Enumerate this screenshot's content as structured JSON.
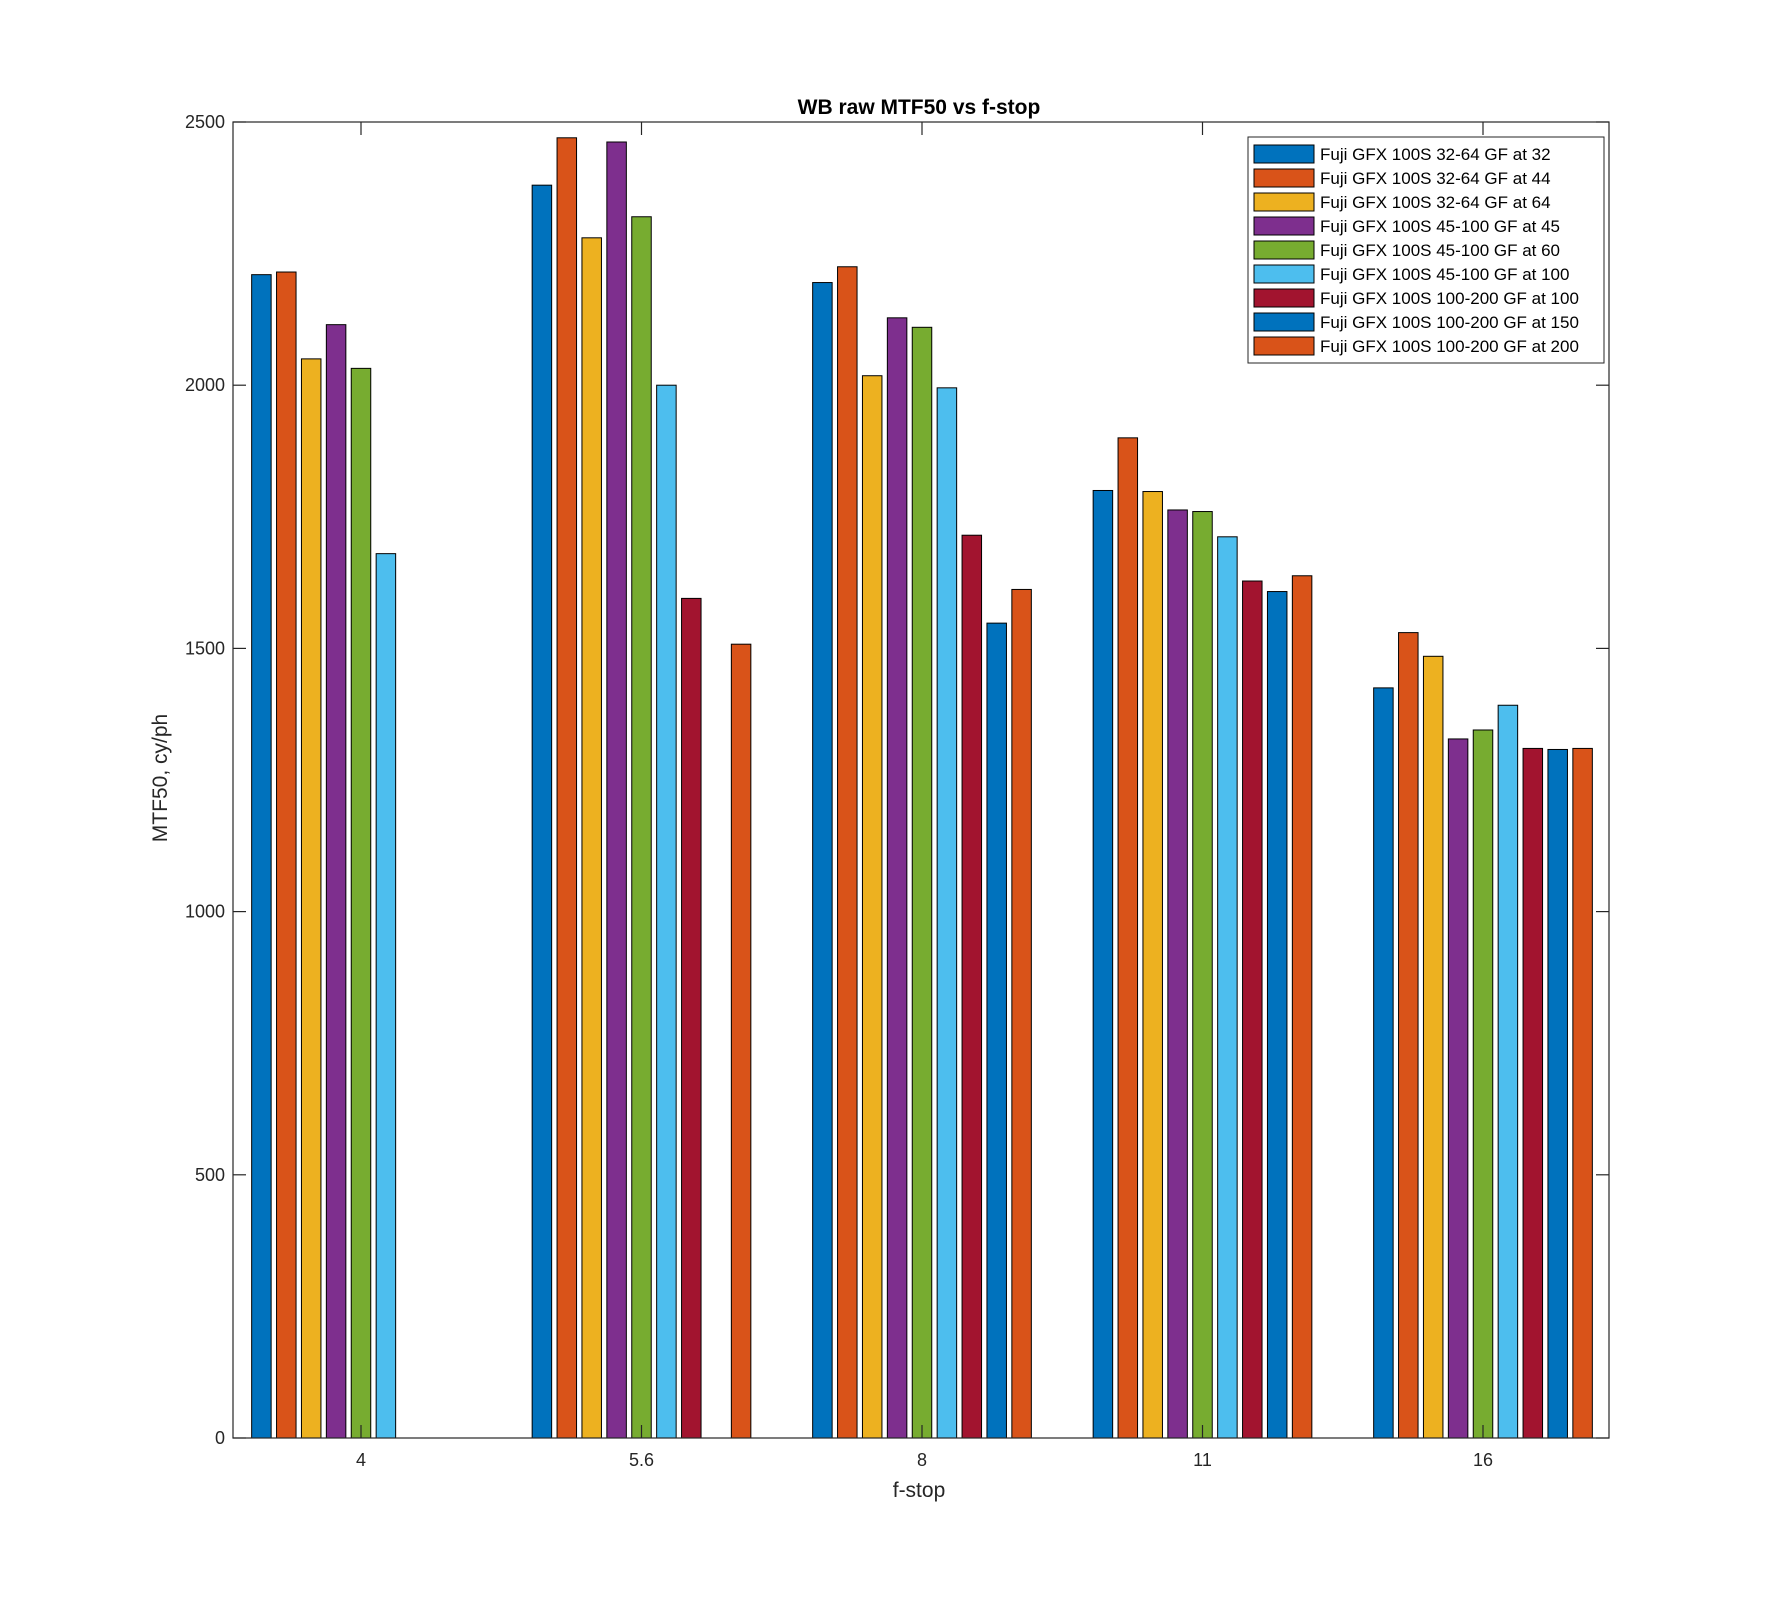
{
  "chart_data": {
    "type": "bar",
    "title": "WB raw MTF50 vs f-stop",
    "xlabel": "f-stop",
    "ylabel": "MTF50, cy/ph",
    "categories": [
      "4",
      "5.6",
      "8",
      "11",
      "16"
    ],
    "ylim": [
      0,
      2500
    ],
    "yticks": [
      "0",
      "500",
      "1000",
      "1500",
      "2000",
      "2500"
    ],
    "grid": false,
    "legend_position": "top-right",
    "series": [
      {
        "name": "Fuji GFX 100S 32-64 GF at 32",
        "color": "#0072BD",
        "values": [
          2210,
          2380,
          2195,
          1800,
          1425
        ]
      },
      {
        "name": "Fuji GFX 100S 32-64 GF at 44",
        "color": "#D95319",
        "values": [
          2215,
          2470,
          2225,
          1900,
          1530
        ]
      },
      {
        "name": "Fuji GFX 100S 32-64 GF at 64",
        "color": "#EDB120",
        "values": [
          2050,
          2280,
          2018,
          1798,
          1485
        ]
      },
      {
        "name": "Fuji GFX 100S 45-100 GF at 45",
        "color": "#7E2F8E",
        "values": [
          2115,
          2462,
          2128,
          1763,
          1328
        ]
      },
      {
        "name": "Fuji GFX 100S 45-100 GF at 60",
        "color": "#77AC30",
        "values": [
          2032,
          2320,
          2110,
          1760,
          1345
        ]
      },
      {
        "name": "Fuji GFX 100S 45-100 GF at 100",
        "color": "#4DBEEE",
        "values": [
          1680,
          2000,
          1995,
          1712,
          1392
        ]
      },
      {
        "name": "Fuji GFX 100S 100-200 GF at 100",
        "color": "#A2142F",
        "values": [
          null,
          1595,
          1715,
          1628,
          1310
        ]
      },
      {
        "name": "Fuji GFX 100S 100-200 GF at 150",
        "color": "#0072BD",
        "values": [
          null,
          null,
          1548,
          1608,
          1308
        ]
      },
      {
        "name": "Fuji GFX 100S 100-200 GF at 200",
        "color": "#D95319",
        "values": [
          null,
          1508,
          1612,
          1638,
          1310
        ]
      }
    ]
  }
}
